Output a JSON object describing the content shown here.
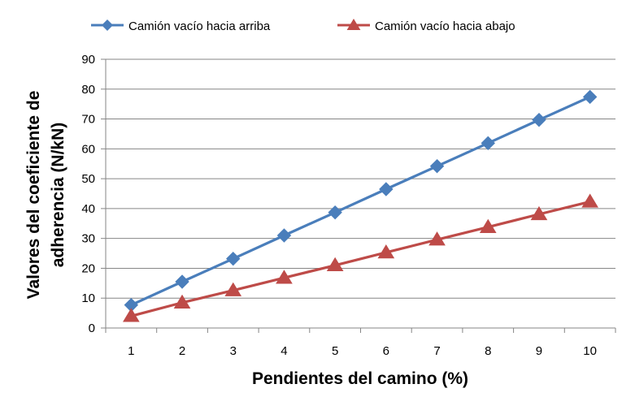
{
  "chart_data": {
    "type": "line",
    "title": "",
    "xlabel": "Pendientes del camino (%)",
    "ylabel_lines": [
      "Valores del coeficiente de",
      "adherencia (N/kN)"
    ],
    "categories": [
      "1",
      "2",
      "3",
      "4",
      "5",
      "6",
      "7",
      "8",
      "9",
      "10"
    ],
    "ylim": [
      0,
      90
    ],
    "yticks": [
      "0",
      "10",
      "20",
      "30",
      "40",
      "50",
      "60",
      "70",
      "80",
      "90"
    ],
    "grid": true,
    "legend_position": "top",
    "series": [
      {
        "name": "Camión vacío hacia arriba",
        "color": "#4A7EBB",
        "marker": "diamond",
        "values": [
          7.7,
          15.5,
          23.2,
          31.0,
          38.7,
          46.5,
          54.2,
          61.9,
          69.7,
          77.4
        ]
      },
      {
        "name": "Camión vacío hacia abajo",
        "color": "#BE4B48",
        "marker": "triangle",
        "values": [
          4.0,
          8.5,
          12.6,
          16.8,
          21.0,
          25.3,
          29.6,
          33.8,
          38.1,
          42.3
        ]
      }
    ]
  }
}
